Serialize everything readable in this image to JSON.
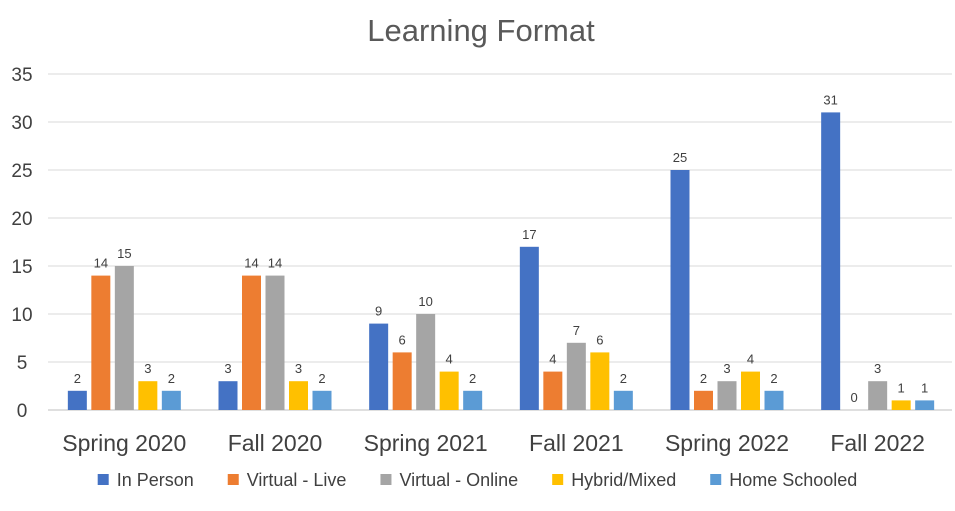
{
  "chart_data": {
    "type": "bar",
    "title": "Learning Format",
    "xlabel": "",
    "ylabel": "",
    "ylim": [
      0,
      35
    ],
    "yticks": [
      0,
      5,
      10,
      15,
      20,
      25,
      30,
      35
    ],
    "grid": true,
    "legend_position": "bottom",
    "categories": [
      "Spring 2020",
      "Fall 2020",
      "Spring 2021",
      "Fall 2021",
      "Spring 2022",
      "Fall 2022"
    ],
    "series": [
      {
        "name": "In Person",
        "color": "#4472c4",
        "values": [
          2,
          3,
          9,
          17,
          25,
          31
        ]
      },
      {
        "name": "Virtual - Live",
        "color": "#ed7d31",
        "values": [
          14,
          14,
          6,
          4,
          2,
          0
        ]
      },
      {
        "name": "Virtual - Online",
        "color": "#a5a5a5",
        "values": [
          15,
          14,
          10,
          7,
          3,
          3
        ]
      },
      {
        "name": "Hybrid/Mixed",
        "color": "#ffc000",
        "values": [
          3,
          3,
          4,
          6,
          4,
          1
        ]
      },
      {
        "name": "Home Schooled",
        "color": "#5b9bd5",
        "values": [
          2,
          2,
          2,
          2,
          2,
          1
        ]
      }
    ]
  }
}
